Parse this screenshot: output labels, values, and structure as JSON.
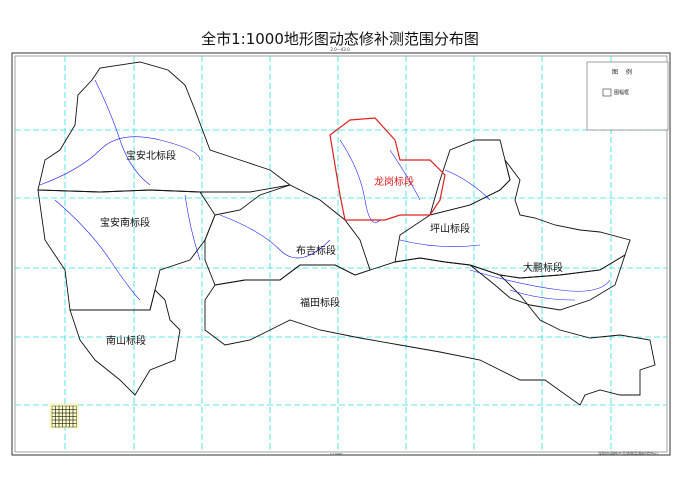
{
  "title": "全市1:1000地形图动态修补测范围分布图",
  "subtitle": "2.0—43.0",
  "scale": "1:10000",
  "organization": "深圳市测绘产品质量监督检验中心",
  "legend": {
    "title": "图 例",
    "items": [
      {
        "label": "图幅框"
      }
    ]
  },
  "districts": [
    {
      "name": "宝安北标段",
      "color": "#111111"
    },
    {
      "name": "宝安南标段",
      "color": "#111111"
    },
    {
      "name": "南山标段",
      "color": "#111111"
    },
    {
      "name": "布吉标段",
      "color": "#111111"
    },
    {
      "name": "福田标段",
      "color": "#111111"
    },
    {
      "name": "龙岗标段",
      "color": "#e02020"
    },
    {
      "name": "坪山标段",
      "color": "#111111"
    },
    {
      "name": "大鹏标段",
      "color": "#111111"
    }
  ],
  "colors": {
    "grid": "#33e0e0",
    "rivers": "#1a1aff",
    "boundary": "#111111",
    "highlight": "#e02020"
  }
}
